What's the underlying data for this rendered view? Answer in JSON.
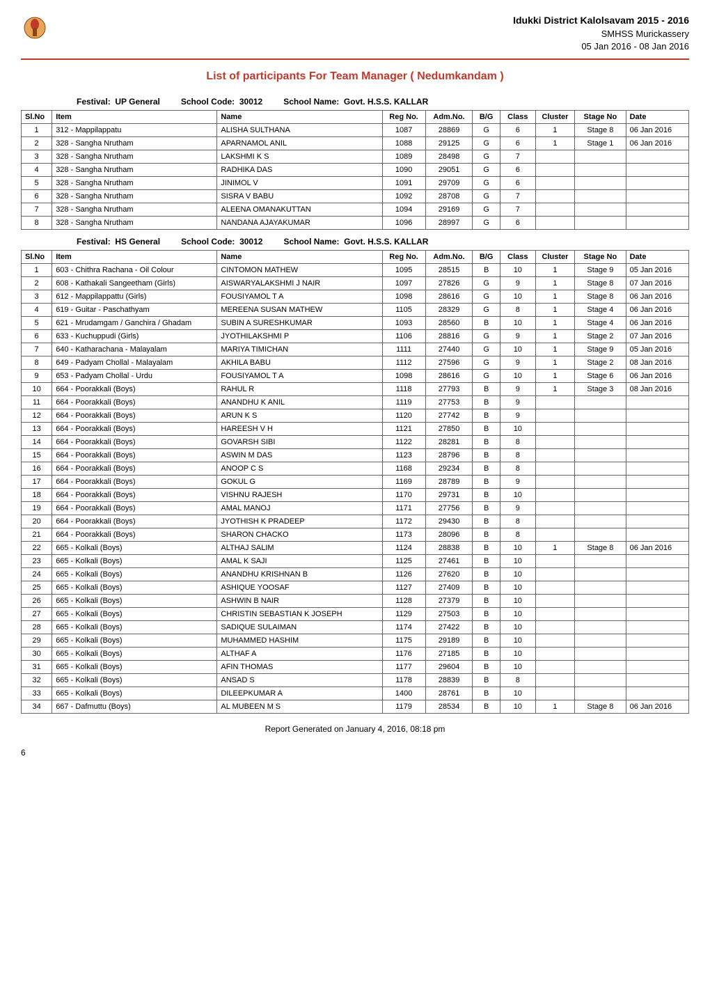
{
  "header": {
    "title": "Idukki District Kalolsavam 2015 - 2016",
    "school": "SMHSS Murickassery",
    "dates": "05 Jan 2016 - 08 Jan 2016"
  },
  "pageTitle": "List of participants For Team Manager ( Nedumkandam )",
  "festival1": {
    "label": "Festival:",
    "value": "UP General",
    "schoolCodeLabel": "School Code:",
    "schoolCode": "30012",
    "schoolNameLabel": "School Name:",
    "schoolName": "Govt. H.S.S. KALLAR"
  },
  "festival2": {
    "label": "Festival:",
    "value": "HS General",
    "schoolCodeLabel": "School Code:",
    "schoolCode": "30012",
    "schoolNameLabel": "School Name:",
    "schoolName": "Govt. H.S.S. KALLAR"
  },
  "columns": {
    "slNo": "Sl.No",
    "item": "Item",
    "name": "Name",
    "regNo": "Reg No.",
    "admNo": "Adm.No.",
    "bg": "B/G",
    "class": "Class",
    "cluster": "Cluster",
    "stageNo": "Stage No",
    "date": "Date"
  },
  "table1": [
    {
      "slNo": "1",
      "item": "312 - Mappilappatu",
      "name": "ALISHA SULTHANA",
      "regNo": "1087",
      "admNo": "28869",
      "bg": "G",
      "class": "6",
      "cluster": "1",
      "stageNo": "Stage 8",
      "date": "06 Jan 2016"
    },
    {
      "slNo": "2",
      "item": "328 - Sangha Nrutham",
      "name": "APARNAMOL ANIL",
      "regNo": "1088",
      "admNo": "29125",
      "bg": "G",
      "class": "6",
      "cluster": "1",
      "stageNo": "Stage 1",
      "date": "06 Jan 2016"
    },
    {
      "slNo": "3",
      "item": "328 - Sangha Nrutham",
      "name": "LAKSHMI K S",
      "regNo": "1089",
      "admNo": "28498",
      "bg": "G",
      "class": "7",
      "cluster": "",
      "stageNo": "",
      "date": ""
    },
    {
      "slNo": "4",
      "item": "328 - Sangha Nrutham",
      "name": "RADHIKA DAS",
      "regNo": "1090",
      "admNo": "29051",
      "bg": "G",
      "class": "6",
      "cluster": "",
      "stageNo": "",
      "date": ""
    },
    {
      "slNo": "5",
      "item": "328 - Sangha Nrutham",
      "name": "JINIMOL V",
      "regNo": "1091",
      "admNo": "29709",
      "bg": "G",
      "class": "6",
      "cluster": "",
      "stageNo": "",
      "date": ""
    },
    {
      "slNo": "6",
      "item": "328 - Sangha Nrutham",
      "name": "SISRA V BABU",
      "regNo": "1092",
      "admNo": "28708",
      "bg": "G",
      "class": "7",
      "cluster": "",
      "stageNo": "",
      "date": ""
    },
    {
      "slNo": "7",
      "item": "328 - Sangha Nrutham",
      "name": "ALEENA OMANAKUTTAN",
      "regNo": "1094",
      "admNo": "29169",
      "bg": "G",
      "class": "7",
      "cluster": "",
      "stageNo": "",
      "date": ""
    },
    {
      "slNo": "8",
      "item": "328 - Sangha Nrutham",
      "name": "NANDANA AJAYAKUMAR",
      "regNo": "1096",
      "admNo": "28997",
      "bg": "G",
      "class": "6",
      "cluster": "",
      "stageNo": "",
      "date": ""
    }
  ],
  "table2": [
    {
      "slNo": "1",
      "item": "603 - Chithra Rachana - Oil Colour",
      "name": "CINTOMON MATHEW",
      "regNo": "1095",
      "admNo": "28515",
      "bg": "B",
      "class": "10",
      "cluster": "1",
      "stageNo": "Stage 9",
      "date": "05 Jan 2016"
    },
    {
      "slNo": "2",
      "item": "608 - Kathakali Sangeetham (Girls)",
      "name": "AISWARYALAKSHMI J NAIR",
      "regNo": "1097",
      "admNo": "27826",
      "bg": "G",
      "class": "9",
      "cluster": "1",
      "stageNo": "Stage 8",
      "date": "07 Jan 2016"
    },
    {
      "slNo": "3",
      "item": "612 - Mappilappattu (Girls)",
      "name": "FOUSIYAMOL T A",
      "regNo": "1098",
      "admNo": "28616",
      "bg": "G",
      "class": "10",
      "cluster": "1",
      "stageNo": "Stage 8",
      "date": "06 Jan 2016"
    },
    {
      "slNo": "4",
      "item": "619 - Guitar - Paschathyam",
      "name": "MEREENA SUSAN MATHEW",
      "regNo": "1105",
      "admNo": "28329",
      "bg": "G",
      "class": "8",
      "cluster": "1",
      "stageNo": "Stage 4",
      "date": "06 Jan 2016"
    },
    {
      "slNo": "5",
      "item": "621 - Mrudamgam / Ganchira / Ghadam",
      "name": "SUBIN A SURESHKUMAR",
      "regNo": "1093",
      "admNo": "28560",
      "bg": "B",
      "class": "10",
      "cluster": "1",
      "stageNo": "Stage 4",
      "date": "06 Jan 2016"
    },
    {
      "slNo": "6",
      "item": "633 - Kuchuppudi (Girls)",
      "name": "JYOTHILAKSHMI P",
      "regNo": "1106",
      "admNo": "28816",
      "bg": "G",
      "class": "9",
      "cluster": "1",
      "stageNo": "Stage 2",
      "date": "07 Jan 2016"
    },
    {
      "slNo": "7",
      "item": "640 - Katharachana - Malayalam",
      "name": "MARIYA TIMICHAN",
      "regNo": "1111",
      "admNo": "27440",
      "bg": "G",
      "class": "10",
      "cluster": "1",
      "stageNo": "Stage 9",
      "date": "05 Jan 2016"
    },
    {
      "slNo": "8",
      "item": "649 - Padyam Chollal - Malayalam",
      "name": "AKHILA BABU",
      "regNo": "1112",
      "admNo": "27596",
      "bg": "G",
      "class": "9",
      "cluster": "1",
      "stageNo": "Stage 2",
      "date": "08 Jan 2016"
    },
    {
      "slNo": "9",
      "item": "653 - Padyam Chollal - Urdu",
      "name": "FOUSIYAMOL T A",
      "regNo": "1098",
      "admNo": "28616",
      "bg": "G",
      "class": "10",
      "cluster": "1",
      "stageNo": "Stage 6",
      "date": "06 Jan 2016"
    },
    {
      "slNo": "10",
      "item": "664 - Poorakkali (Boys)",
      "name": "RAHUL R",
      "regNo": "1118",
      "admNo": "27793",
      "bg": "B",
      "class": "9",
      "cluster": "1",
      "stageNo": "Stage 3",
      "date": "08 Jan 2016"
    },
    {
      "slNo": "11",
      "item": "664 - Poorakkali (Boys)",
      "name": "ANANDHU K ANIL",
      "regNo": "1119",
      "admNo": "27753",
      "bg": "B",
      "class": "9",
      "cluster": "",
      "stageNo": "",
      "date": ""
    },
    {
      "slNo": "12",
      "item": "664 - Poorakkali (Boys)",
      "name": "ARUN K S",
      "regNo": "1120",
      "admNo": "27742",
      "bg": "B",
      "class": "9",
      "cluster": "",
      "stageNo": "",
      "date": ""
    },
    {
      "slNo": "13",
      "item": "664 - Poorakkali (Boys)",
      "name": "HAREESH V H",
      "regNo": "1121",
      "admNo": "27850",
      "bg": "B",
      "class": "10",
      "cluster": "",
      "stageNo": "",
      "date": ""
    },
    {
      "slNo": "14",
      "item": "664 - Poorakkali (Boys)",
      "name": "GOVARSH SIBI",
      "regNo": "1122",
      "admNo": "28281",
      "bg": "B",
      "class": "8",
      "cluster": "",
      "stageNo": "",
      "date": ""
    },
    {
      "slNo": "15",
      "item": "664 - Poorakkali (Boys)",
      "name": "ASWIN M DAS",
      "regNo": "1123",
      "admNo": "28796",
      "bg": "B",
      "class": "8",
      "cluster": "",
      "stageNo": "",
      "date": ""
    },
    {
      "slNo": "16",
      "item": "664 - Poorakkali (Boys)",
      "name": "ANOOP C S",
      "regNo": "1168",
      "admNo": "29234",
      "bg": "B",
      "class": "8",
      "cluster": "",
      "stageNo": "",
      "date": ""
    },
    {
      "slNo": "17",
      "item": "664 - Poorakkali (Boys)",
      "name": "GOKUL G",
      "regNo": "1169",
      "admNo": "28789",
      "bg": "B",
      "class": "9",
      "cluster": "",
      "stageNo": "",
      "date": ""
    },
    {
      "slNo": "18",
      "item": "664 - Poorakkali (Boys)",
      "name": "VISHNU RAJESH",
      "regNo": "1170",
      "admNo": "29731",
      "bg": "B",
      "class": "10",
      "cluster": "",
      "stageNo": "",
      "date": ""
    },
    {
      "slNo": "19",
      "item": "664 - Poorakkali (Boys)",
      "name": "AMAL MANOJ",
      "regNo": "1171",
      "admNo": "27756",
      "bg": "B",
      "class": "9",
      "cluster": "",
      "stageNo": "",
      "date": ""
    },
    {
      "slNo": "20",
      "item": "664 - Poorakkali (Boys)",
      "name": "JYOTHISH K PRADEEP",
      "regNo": "1172",
      "admNo": "29430",
      "bg": "B",
      "class": "8",
      "cluster": "",
      "stageNo": "",
      "date": ""
    },
    {
      "slNo": "21",
      "item": "664 - Poorakkali (Boys)",
      "name": "SHARON CHACKO",
      "regNo": "1173",
      "admNo": "28096",
      "bg": "B",
      "class": "8",
      "cluster": "",
      "stageNo": "",
      "date": ""
    },
    {
      "slNo": "22",
      "item": "665 - Kolkali (Boys)",
      "name": "ALTHAJ SALIM",
      "regNo": "1124",
      "admNo": "28838",
      "bg": "B",
      "class": "10",
      "cluster": "1",
      "stageNo": "Stage 8",
      "date": "06 Jan 2016"
    },
    {
      "slNo": "23",
      "item": "665 - Kolkali (Boys)",
      "name": "AMAL K SAJI",
      "regNo": "1125",
      "admNo": "27461",
      "bg": "B",
      "class": "10",
      "cluster": "",
      "stageNo": "",
      "date": ""
    },
    {
      "slNo": "24",
      "item": "665 - Kolkali (Boys)",
      "name": "ANANDHU KRISHNAN B",
      "regNo": "1126",
      "admNo": "27620",
      "bg": "B",
      "class": "10",
      "cluster": "",
      "stageNo": "",
      "date": ""
    },
    {
      "slNo": "25",
      "item": "665 - Kolkali (Boys)",
      "name": "ASHIQUE YOOSAF",
      "regNo": "1127",
      "admNo": "27409",
      "bg": "B",
      "class": "10",
      "cluster": "",
      "stageNo": "",
      "date": ""
    },
    {
      "slNo": "26",
      "item": "665 - Kolkali (Boys)",
      "name": "ASHWIN B NAIR",
      "regNo": "1128",
      "admNo": "27379",
      "bg": "B",
      "class": "10",
      "cluster": "",
      "stageNo": "",
      "date": ""
    },
    {
      "slNo": "27",
      "item": "665 - Kolkali (Boys)",
      "name": "CHRISTIN SEBASTIAN K JOSEPH",
      "regNo": "1129",
      "admNo": "27503",
      "bg": "B",
      "class": "10",
      "cluster": "",
      "stageNo": "",
      "date": ""
    },
    {
      "slNo": "28",
      "item": "665 - Kolkali (Boys)",
      "name": "SADIQUE SULAIMAN",
      "regNo": "1174",
      "admNo": "27422",
      "bg": "B",
      "class": "10",
      "cluster": "",
      "stageNo": "",
      "date": ""
    },
    {
      "slNo": "29",
      "item": "665 - Kolkali (Boys)",
      "name": "MUHAMMED HASHIM",
      "regNo": "1175",
      "admNo": "29189",
      "bg": "B",
      "class": "10",
      "cluster": "",
      "stageNo": "",
      "date": ""
    },
    {
      "slNo": "30",
      "item": "665 - Kolkali (Boys)",
      "name": "ALTHAF A",
      "regNo": "1176",
      "admNo": "27185",
      "bg": "B",
      "class": "10",
      "cluster": "",
      "stageNo": "",
      "date": ""
    },
    {
      "slNo": "31",
      "item": "665 - Kolkali (Boys)",
      "name": "AFIN THOMAS",
      "regNo": "1177",
      "admNo": "29604",
      "bg": "B",
      "class": "10",
      "cluster": "",
      "stageNo": "",
      "date": ""
    },
    {
      "slNo": "32",
      "item": "665 - Kolkali (Boys)",
      "name": "ANSAD S",
      "regNo": "1178",
      "admNo": "28839",
      "bg": "B",
      "class": "8",
      "cluster": "",
      "stageNo": "",
      "date": ""
    },
    {
      "slNo": "33",
      "item": "665 - Kolkali (Boys)",
      "name": "DILEEPKUMAR A",
      "regNo": "1400",
      "admNo": "28761",
      "bg": "B",
      "class": "10",
      "cluster": "",
      "stageNo": "",
      "date": ""
    },
    {
      "slNo": "34",
      "item": "667 - Dafmuttu (Boys)",
      "name": "AL MUBEEN M S",
      "regNo": "1179",
      "admNo": "28534",
      "bg": "B",
      "class": "10",
      "cluster": "1",
      "stageNo": "Stage 8",
      "date": "06 Jan 2016"
    }
  ],
  "footer": "Report Generated on   January 4, 2016, 08:18 pm",
  "pageNumber": "6",
  "colors": {
    "accent": "#c0392b",
    "border": "#666666",
    "text": "#000000",
    "background": "#ffffff"
  }
}
